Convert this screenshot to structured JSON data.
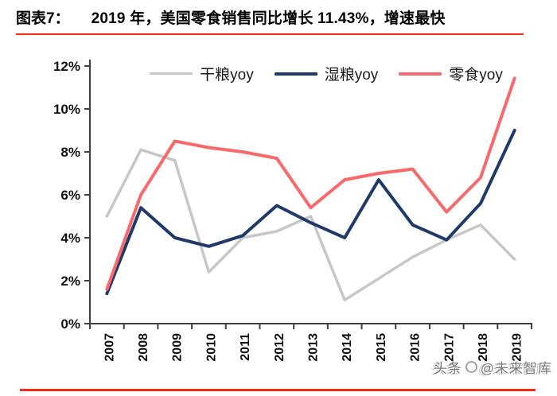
{
  "header": {
    "figure_label": "图表7：",
    "title": "2019 年，美国零食销售同比增长 11.43%，增速最快"
  },
  "chart_data": {
    "type": "line",
    "title": "2019 年，美国零食销售同比增长 11.43%，增速最快",
    "categories": [
      "2007",
      "2008",
      "2009",
      "2010",
      "2011",
      "2012",
      "2013",
      "2014",
      "2015",
      "2016",
      "2017",
      "2018",
      "2019"
    ],
    "series": [
      {
        "name": "干粮yoy",
        "key": "dry-food-yoy",
        "color": "#c7c7c7",
        "values": [
          5.0,
          8.1,
          7.6,
          2.4,
          4.0,
          4.3,
          5.0,
          1.1,
          2.1,
          3.1,
          3.9,
          4.6,
          3.0
        ]
      },
      {
        "name": "湿粮yoy",
        "key": "wet-food-yoy",
        "color": "#1f3a68",
        "values": [
          1.4,
          5.4,
          4.0,
          3.6,
          4.1,
          5.5,
          4.7,
          4.0,
          6.7,
          4.6,
          3.9,
          5.6,
          9.0
        ]
      },
      {
        "name": "零食yoy",
        "key": "snack-yoy",
        "color": "#f8696b",
        "values": [
          1.6,
          6.0,
          8.5,
          8.2,
          8.0,
          7.7,
          5.4,
          6.7,
          7.0,
          7.2,
          5.2,
          6.8,
          11.43
        ]
      }
    ],
    "xlabel": "",
    "ylabel": "",
    "ylim": [
      0,
      12
    ],
    "ytick_step": 2,
    "ytick_labels": [
      "0%",
      "2%",
      "4%",
      "6%",
      "8%",
      "10%",
      "12%"
    ],
    "grid": false,
    "legend_position": "top-center"
  },
  "watermark": {
    "text_left": "头条",
    "text_right": "@未来智库"
  },
  "accent": {
    "rule_red": "#fb2a15",
    "axis_color": "#404040",
    "tick_label_color": "#111111"
  }
}
